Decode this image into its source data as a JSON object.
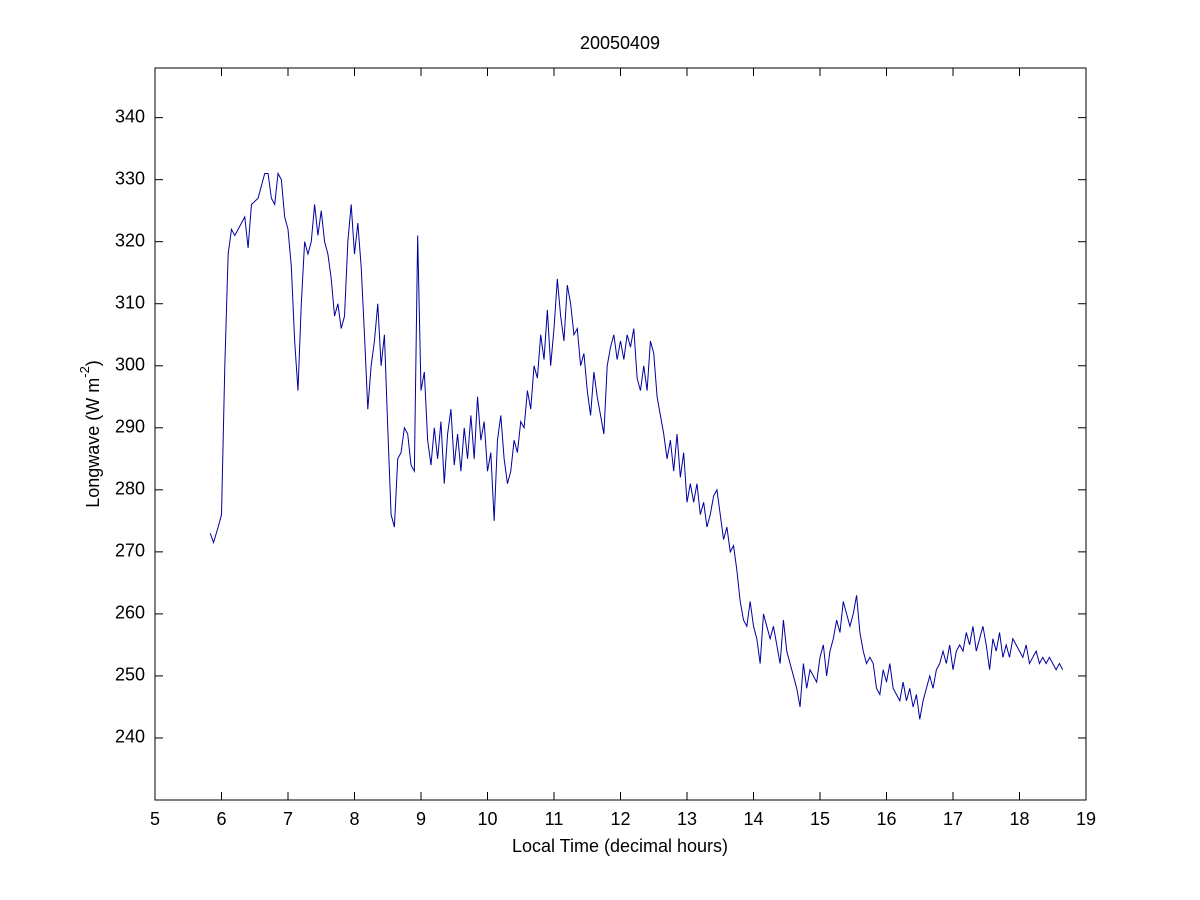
{
  "chart_data": {
    "type": "line",
    "title": "20050409",
    "xlabel": "Local Time (decimal hours)",
    "ylabel": "Longwave (W m",
    "ylabel_sup": "-2",
    "ylabel_end": ")",
    "xlim": [
      5,
      19
    ],
    "xticks": [
      5,
      6,
      7,
      8,
      9,
      10,
      11,
      12,
      13,
      14,
      15,
      16,
      17,
      18,
      19
    ],
    "ylim": [
      230,
      348
    ],
    "yticks": [
      240,
      250,
      260,
      270,
      280,
      290,
      300,
      310,
      320,
      330,
      340
    ],
    "grid": false,
    "x": [
      5.83,
      5.88,
      5.95,
      6.0,
      6.05,
      6.1,
      6.15,
      6.2,
      6.3,
      6.35,
      6.4,
      6.45,
      6.55,
      6.65,
      6.7,
      6.75,
      6.8,
      6.85,
      6.9,
      6.95,
      7.0,
      7.05,
      7.1,
      7.15,
      7.2,
      7.25,
      7.3,
      7.35,
      7.4,
      7.45,
      7.5,
      7.55,
      7.6,
      7.65,
      7.7,
      7.75,
      7.8,
      7.85,
      7.9,
      7.95,
      8.0,
      8.05,
      8.1,
      8.15,
      8.2,
      8.25,
      8.3,
      8.35,
      8.4,
      8.45,
      8.5,
      8.55,
      8.6,
      8.65,
      8.7,
      8.75,
      8.8,
      8.85,
      8.9,
      8.95,
      9.0,
      9.05,
      9.1,
      9.15,
      9.2,
      9.25,
      9.3,
      9.35,
      9.4,
      9.45,
      9.5,
      9.55,
      9.6,
      9.65,
      9.7,
      9.75,
      9.8,
      9.85,
      9.9,
      9.95,
      10.0,
      10.05,
      10.1,
      10.15,
      10.2,
      10.25,
      10.3,
      10.35,
      10.4,
      10.45,
      10.5,
      10.55,
      10.6,
      10.65,
      10.7,
      10.75,
      10.8,
      10.85,
      10.9,
      10.95,
      11.0,
      11.05,
      11.1,
      11.15,
      11.2,
      11.25,
      11.3,
      11.35,
      11.4,
      11.45,
      11.5,
      11.55,
      11.6,
      11.65,
      11.7,
      11.75,
      11.8,
      11.85,
      11.9,
      11.95,
      12.0,
      12.05,
      12.1,
      12.15,
      12.2,
      12.25,
      12.3,
      12.35,
      12.4,
      12.45,
      12.5,
      12.55,
      12.6,
      12.65,
      12.7,
      12.75,
      12.8,
      12.85,
      12.9,
      12.95,
      13.0,
      13.05,
      13.1,
      13.15,
      13.2,
      13.25,
      13.3,
      13.35,
      13.4,
      13.45,
      13.5,
      13.55,
      13.6,
      13.65,
      13.7,
      13.75,
      13.8,
      13.85,
      13.9,
      13.95,
      14.0,
      14.05,
      14.1,
      14.15,
      14.2,
      14.25,
      14.3,
      14.35,
      14.4,
      14.45,
      14.5,
      14.55,
      14.6,
      14.65,
      14.7,
      14.75,
      14.8,
      14.85,
      14.9,
      14.95,
      15.0,
      15.05,
      15.1,
      15.15,
      15.2,
      15.25,
      15.3,
      15.35,
      15.4,
      15.45,
      15.5,
      15.55,
      15.6,
      15.65,
      15.7,
      15.75,
      15.8,
      15.85,
      15.9,
      15.95,
      16.0,
      16.05,
      16.1,
      16.15,
      16.2,
      16.25,
      16.3,
      16.35,
      16.4,
      16.45,
      16.5,
      16.55,
      16.6,
      16.65,
      16.7,
      16.75,
      16.8,
      16.85,
      16.9,
      16.95,
      17.0,
      17.05,
      17.1,
      17.15,
      17.2,
      17.25,
      17.3,
      17.35,
      17.4,
      17.45,
      17.5,
      17.55,
      17.6,
      17.65,
      17.7,
      17.75,
      17.8,
      17.85,
      17.9,
      17.95,
      18.0,
      18.05,
      18.1,
      18.15,
      18.2,
      18.25,
      18.3,
      18.35,
      18.4,
      18.45,
      18.5,
      18.55,
      18.6,
      18.65
    ],
    "series": [
      {
        "color": "#0000a0",
        "values": [
          273,
          271.5,
          274,
          276,
          300,
          318,
          322,
          321,
          323,
          324,
          319,
          326,
          327,
          331,
          331,
          327,
          326,
          331,
          330,
          324,
          322,
          316,
          304,
          296,
          310,
          320,
          318,
          320,
          326,
          321,
          325,
          320,
          318,
          314,
          308,
          310,
          306,
          308,
          320,
          326,
          318,
          323,
          316,
          305,
          293,
          300,
          304,
          310,
          300,
          305,
          290,
          276,
          274,
          285,
          286,
          290,
          289,
          284,
          283,
          321,
          296,
          299,
          288,
          284,
          290,
          285,
          291,
          281,
          289,
          293,
          284,
          289,
          283,
          290,
          285,
          292,
          285,
          295,
          288,
          291,
          283,
          286,
          275,
          288,
          292,
          285,
          281,
          283,
          288,
          286,
          291,
          290,
          296,
          293,
          300,
          298,
          305,
          301,
          309,
          300,
          306,
          314,
          308,
          304,
          313,
          310,
          305,
          306,
          300,
          302,
          296,
          292,
          299,
          295,
          292,
          289,
          300,
          303,
          305,
          301,
          304,
          301,
          305,
          303,
          306,
          298,
          296,
          300,
          296,
          304,
          302,
          295,
          292,
          289,
          285,
          288,
          283,
          289,
          282,
          286,
          278,
          281,
          278,
          281,
          276,
          278,
          274,
          276,
          279,
          280,
          276,
          272,
          274,
          270,
          271,
          267,
          262,
          259,
          258,
          262,
          258,
          256,
          252,
          260,
          258,
          256,
          258,
          255,
          252,
          259,
          254,
          252,
          250,
          248,
          245,
          252,
          248,
          251,
          250,
          249,
          253,
          255,
          250,
          254,
          256,
          259,
          257,
          262,
          260,
          258,
          260,
          263,
          257,
          254,
          252,
          253,
          252,
          248,
          247,
          251,
          249,
          252,
          248,
          247,
          246,
          249,
          246,
          248,
          245,
          247,
          243,
          246,
          248,
          250,
          248,
          251,
          252,
          254,
          252,
          255,
          251,
          254,
          255,
          254,
          257,
          255,
          258,
          254,
          256,
          258,
          255,
          251,
          256,
          254,
          257,
          253,
          255,
          253,
          256,
          255,
          254,
          253,
          255,
          252,
          253,
          254,
          252,
          253,
          252,
          253,
          252,
          251,
          252,
          251
        ]
      }
    ]
  }
}
